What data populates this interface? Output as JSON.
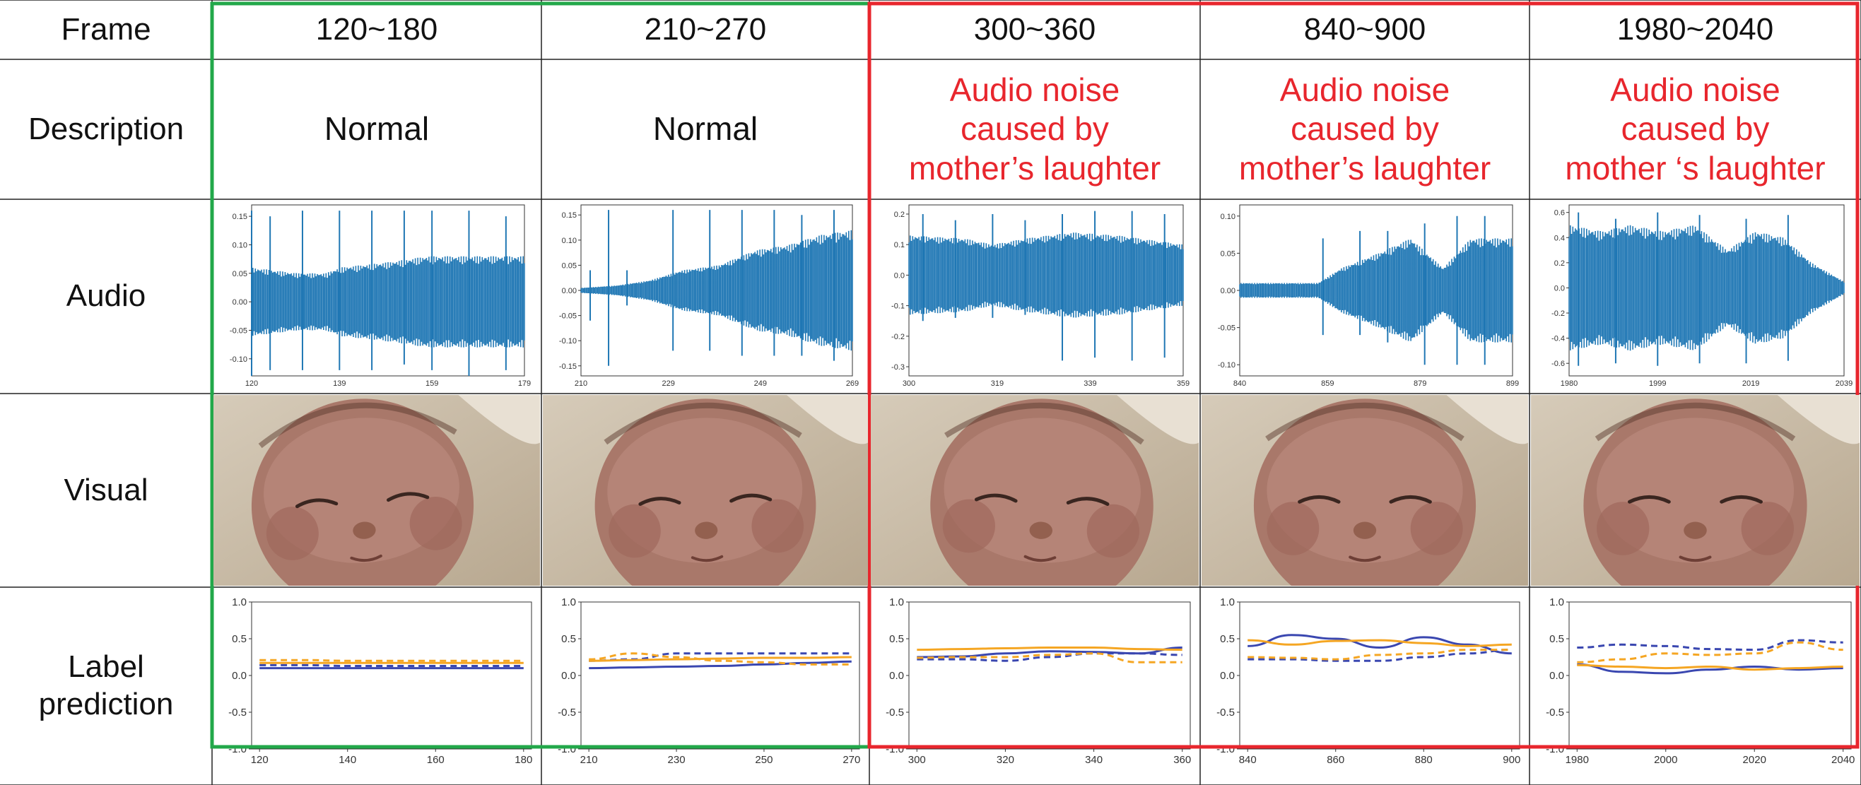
{
  "rows": {
    "frame": "Frame",
    "description": "Description",
    "audio": "Audio",
    "visual": "Visual",
    "label_prediction": "Label\nprediction"
  },
  "columns": [
    {
      "frame_range": "120~180",
      "description": "Normal",
      "group": "normal"
    },
    {
      "frame_range": "210~270",
      "description": "Normal",
      "group": "normal"
    },
    {
      "frame_range": "300~360",
      "description": "Audio noise\ncaused by\nmother’s laughter",
      "group": "noise"
    },
    {
      "frame_range": "840~900",
      "description": "Audio noise\ncaused by\nmother’s laughter",
      "group": "noise"
    },
    {
      "frame_range": "1980~2040",
      "description": "Audio noise\ncaused by\nmother ‘s laughter",
      "group": "noise"
    }
  ],
  "colors": {
    "normal_box": "#22a84a",
    "noise_box": "#e8262d",
    "waveform": "#1f77b4",
    "series_blue": "#3a47b0",
    "series_orange": "#f5a623",
    "text_red": "#e8262d"
  },
  "chart_data": {
    "audio_plots": [
      {
        "type": "line",
        "xticks": [
          "120",
          "139",
          "159",
          "179"
        ],
        "yticks": [
          "0.15",
          "0.10",
          "0.05",
          "0.00",
          "-0.05",
          "-0.10"
        ],
        "ylim": [
          -0.13,
          0.17
        ],
        "spikes": [
          [
            120,
            0.16,
            -0.13
          ],
          [
            124,
            0.15,
            -0.12
          ],
          [
            131,
            0.16,
            -0.12
          ],
          [
            139,
            0.16,
            -0.12
          ],
          [
            146,
            0.16,
            -0.12
          ],
          [
            153,
            0.16,
            -0.11
          ],
          [
            159,
            0.16,
            -0.12
          ],
          [
            167,
            0.16,
            -0.13
          ],
          [
            175,
            0.15,
            -0.12
          ]
        ],
        "envelope": [
          [
            120,
            0.06
          ],
          [
            130,
            0.05
          ],
          [
            136,
            0.05
          ],
          [
            139,
            0.06
          ],
          [
            150,
            0.07
          ],
          [
            158,
            0.08
          ],
          [
            165,
            0.08
          ],
          [
            179,
            0.08
          ]
        ]
      },
      {
        "type": "line",
        "xticks": [
          "210",
          "229",
          "249",
          "269"
        ],
        "yticks": [
          "0.15",
          "0.10",
          "0.05",
          "0.00",
          "-0.05",
          "-0.10",
          "-0.15"
        ],
        "ylim": [
          -0.17,
          0.17
        ],
        "spikes": [
          [
            212,
            0.04,
            -0.06
          ],
          [
            216,
            0.16,
            -0.15
          ],
          [
            220,
            0.04,
            -0.03
          ],
          [
            230,
            0.16,
            -0.12
          ],
          [
            238,
            0.16,
            -0.12
          ],
          [
            245,
            0.16,
            -0.13
          ],
          [
            252,
            0.16,
            -0.13
          ],
          [
            258,
            0.15,
            -0.13
          ],
          [
            265,
            0.16,
            -0.14
          ]
        ],
        "envelope": [
          [
            210,
            0.005
          ],
          [
            218,
            0.01
          ],
          [
            225,
            0.02
          ],
          [
            232,
            0.04
          ],
          [
            240,
            0.05
          ],
          [
            248,
            0.08
          ],
          [
            255,
            0.09
          ],
          [
            262,
            0.11
          ],
          [
            269,
            0.12
          ]
        ]
      },
      {
        "type": "line",
        "xticks": [
          "300",
          "319",
          "339",
          "359"
        ],
        "yticks": [
          "0.2",
          "0.1",
          "0.0",
          "-0.1",
          "-0.2",
          "-0.3"
        ],
        "ylim": [
          -0.33,
          0.23
        ],
        "spikes": [
          [
            303,
            0.2,
            -0.15
          ],
          [
            310,
            0.18,
            -0.14
          ],
          [
            318,
            0.2,
            -0.14
          ],
          [
            325,
            0.18,
            -0.13
          ],
          [
            333,
            0.2,
            -0.28
          ],
          [
            340,
            0.21,
            -0.27
          ],
          [
            348,
            0.21,
            -0.28
          ],
          [
            355,
            0.2,
            -0.27
          ]
        ],
        "envelope": [
          [
            300,
            0.13
          ],
          [
            312,
            0.12
          ],
          [
            318,
            0.1
          ],
          [
            325,
            0.12
          ],
          [
            335,
            0.14
          ],
          [
            345,
            0.13
          ],
          [
            359,
            0.1
          ]
        ]
      },
      {
        "type": "line",
        "xticks": [
          "840",
          "859",
          "879",
          "899"
        ],
        "yticks": [
          "0.10",
          "0.05",
          "0.00",
          "-0.05",
          "-0.10"
        ],
        "ylim": [
          -0.115,
          0.115
        ],
        "spikes": [
          [
            858,
            0.07,
            -0.06
          ],
          [
            866,
            0.08,
            -0.06
          ],
          [
            872,
            0.08,
            -0.07
          ],
          [
            880,
            0.09,
            -0.1
          ],
          [
            887,
            0.1,
            -0.1
          ],
          [
            893,
            0.1,
            -0.1
          ]
        ],
        "envelope": [
          [
            840,
            0.01
          ],
          [
            850,
            0.01
          ],
          [
            857,
            0.01
          ],
          [
            862,
            0.03
          ],
          [
            870,
            0.05
          ],
          [
            877,
            0.07
          ],
          [
            884,
            0.03
          ],
          [
            890,
            0.07
          ],
          [
            899,
            0.07
          ]
        ]
      },
      {
        "type": "line",
        "xticks": [
          "1980",
          "1999",
          "2019",
          "2039"
        ],
        "yticks": [
          "0.6",
          "0.4",
          "0.2",
          "0.0",
          "-0.2",
          "-0.4",
          "-0.6"
        ],
        "ylim": [
          -0.7,
          0.66
        ],
        "spikes": [
          [
            1982,
            0.6,
            -0.62
          ],
          [
            1990,
            0.55,
            -0.6
          ],
          [
            1999,
            0.6,
            -0.62
          ],
          [
            2008,
            0.58,
            -0.6
          ],
          [
            2018,
            0.55,
            -0.6
          ],
          [
            2027,
            0.58,
            -0.58
          ]
        ],
        "envelope": [
          [
            1980,
            0.5
          ],
          [
            1987,
            0.45
          ],
          [
            1993,
            0.5
          ],
          [
            2000,
            0.45
          ],
          [
            2007,
            0.5
          ],
          [
            2014,
            0.3
          ],
          [
            2020,
            0.45
          ],
          [
            2026,
            0.4
          ],
          [
            2032,
            0.2
          ],
          [
            2039,
            0.05
          ]
        ]
      }
    ],
    "label_prediction": [
      {
        "type": "line",
        "xticks": [
          "120",
          "140",
          "160",
          "180"
        ],
        "yticks": [
          "1.0",
          "0.5",
          "0.0",
          "-0.5",
          "-1.0"
        ],
        "x_range": [
          120,
          180
        ],
        "ylim": [
          -1.0,
          1.0
        ],
        "series": [
          {
            "name": "blue-solid",
            "values": [
              0.1,
              0.1,
              0.1,
              0.1,
              0.1,
              0.1,
              0.1
            ]
          },
          {
            "name": "blue-dashed",
            "values": [
              0.14,
              0.14,
              0.13,
              0.13,
              0.13,
              0.13,
              0.13
            ]
          },
          {
            "name": "orange-solid",
            "values": [
              0.17,
              0.17,
              0.17,
              0.17,
              0.17,
              0.17,
              0.17
            ]
          },
          {
            "name": "orange-dashed",
            "values": [
              0.21,
              0.21,
              0.2,
              0.2,
              0.2,
              0.2,
              0.2
            ]
          }
        ]
      },
      {
        "type": "line",
        "xticks": [
          "210",
          "230",
          "250",
          "270"
        ],
        "yticks": [
          "1.0",
          "0.5",
          "0.0",
          "-0.5",
          "-1.0"
        ],
        "x_range": [
          210,
          270
        ],
        "ylim": [
          -1.0,
          1.0
        ],
        "series": [
          {
            "name": "blue-solid",
            "values": [
              0.1,
              0.11,
              0.12,
              0.13,
              0.15,
              0.17,
              0.19
            ]
          },
          {
            "name": "blue-dashed",
            "values": [
              0.2,
              0.22,
              0.3,
              0.3,
              0.3,
              0.3,
              0.3
            ]
          },
          {
            "name": "orange-solid",
            "values": [
              0.2,
              0.21,
              0.22,
              0.23,
              0.24,
              0.24,
              0.25
            ]
          },
          {
            "name": "orange-dashed",
            "values": [
              0.22,
              0.3,
              0.25,
              0.2,
              0.18,
              0.15,
              0.15
            ]
          }
        ]
      },
      {
        "type": "line",
        "xticks": [
          "300",
          "320",
          "340",
          "360"
        ],
        "yticks": [
          "1.0",
          "0.5",
          "0.0",
          "-0.5",
          "-1.0"
        ],
        "x_range": [
          300,
          360
        ],
        "ylim": [
          -1.0,
          1.0
        ],
        "series": [
          {
            "name": "blue-solid",
            "values": [
              0.25,
              0.26,
              0.3,
              0.33,
              0.32,
              0.3,
              0.38
            ]
          },
          {
            "name": "blue-dashed",
            "values": [
              0.22,
              0.22,
              0.2,
              0.25,
              0.3,
              0.3,
              0.28
            ]
          },
          {
            "name": "orange-solid",
            "values": [
              0.35,
              0.36,
              0.37,
              0.38,
              0.38,
              0.36,
              0.35
            ]
          },
          {
            "name": "orange-dashed",
            "values": [
              0.24,
              0.25,
              0.25,
              0.28,
              0.3,
              0.18,
              0.18
            ]
          }
        ]
      },
      {
        "type": "line",
        "xticks": [
          "840",
          "860",
          "880",
          "900"
        ],
        "yticks": [
          "1.0",
          "0.5",
          "0.0",
          "-0.5",
          "-1.0"
        ],
        "x_range": [
          840,
          900
        ],
        "ylim": [
          -1.0,
          1.0
        ],
        "series": [
          {
            "name": "blue-solid",
            "values": [
              0.4,
              0.55,
              0.5,
              0.38,
              0.52,
              0.42,
              0.3
            ]
          },
          {
            "name": "blue-dashed",
            "values": [
              0.22,
              0.22,
              0.2,
              0.2,
              0.25,
              0.3,
              0.35
            ]
          },
          {
            "name": "orange-solid",
            "values": [
              0.48,
              0.42,
              0.47,
              0.48,
              0.44,
              0.4,
              0.42
            ]
          },
          {
            "name": "orange-dashed",
            "values": [
              0.25,
              0.24,
              0.22,
              0.28,
              0.3,
              0.35,
              0.35
            ]
          }
        ]
      },
      {
        "type": "line",
        "xticks": [
          "1980",
          "2000",
          "2020",
          "2040"
        ],
        "yticks": [
          "1.0",
          "0.5",
          "0.0",
          "-0.5",
          "-1.0"
        ],
        "x_range": [
          1980,
          2040
        ],
        "ylim": [
          -1.0,
          1.0
        ],
        "series": [
          {
            "name": "blue-solid",
            "values": [
              0.15,
              0.05,
              0.03,
              0.08,
              0.12,
              0.08,
              0.1
            ]
          },
          {
            "name": "blue-dashed",
            "values": [
              0.38,
              0.42,
              0.4,
              0.36,
              0.35,
              0.48,
              0.45
            ]
          },
          {
            "name": "orange-solid",
            "values": [
              0.14,
              0.12,
              0.1,
              0.12,
              0.08,
              0.1,
              0.12
            ]
          },
          {
            "name": "orange-dashed",
            "values": [
              0.18,
              0.22,
              0.3,
              0.28,
              0.3,
              0.45,
              0.35
            ]
          }
        ]
      }
    ]
  }
}
